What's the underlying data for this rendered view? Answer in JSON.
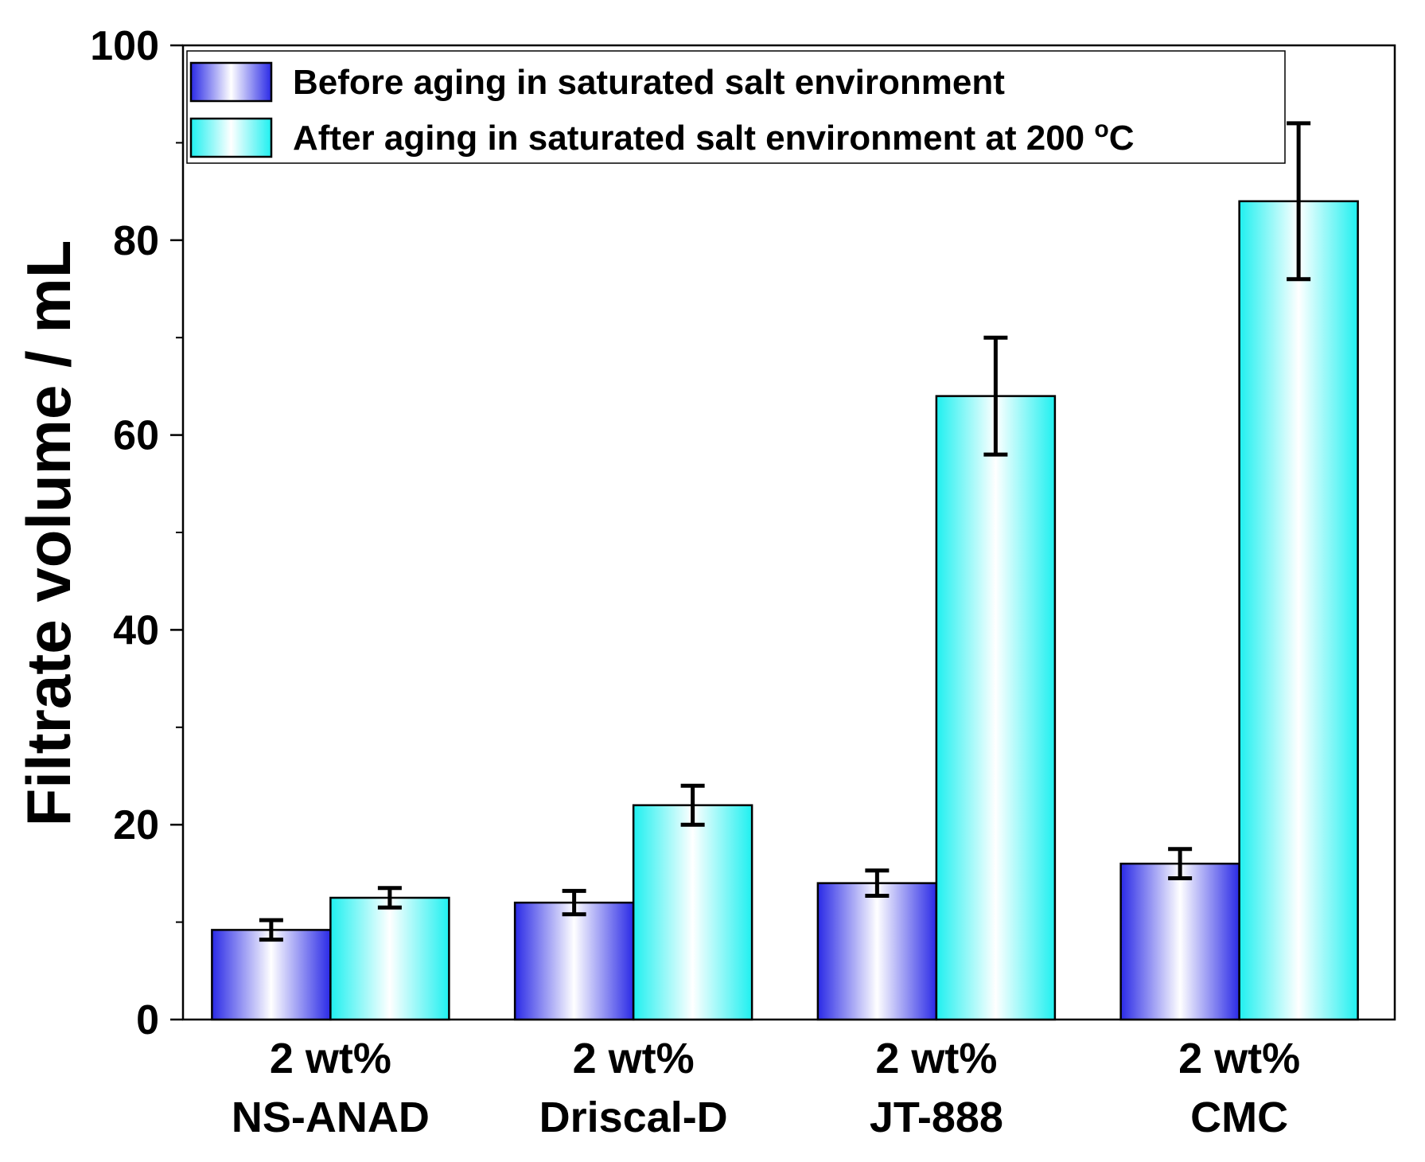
{
  "chart_data": {
    "type": "bar",
    "title": "",
    "xlabel": "",
    "ylabel": "Filtrate volume / mL",
    "ylim": [
      0,
      100
    ],
    "yticks": [
      0,
      20,
      40,
      60,
      80,
      100
    ],
    "yminor_step": 10,
    "categories": [
      {
        "line1": "2 wt%",
        "line2": "NS-ANAD"
      },
      {
        "line1": "2 wt%",
        "line2": "Driscal-D"
      },
      {
        "line1": "2 wt%",
        "line2": "JT-888"
      },
      {
        "line1": "2 wt%",
        "line2": "CMC"
      }
    ],
    "series": [
      {
        "name": "Before aging in saturated salt environment",
        "values": [
          9.2,
          12.0,
          14.0,
          16.0
        ],
        "errors": [
          1.0,
          1.2,
          1.3,
          1.5
        ],
        "color_edge": "#2a2ae6",
        "color_center": "#ffffff"
      },
      {
        "name": "After aging in saturated salt environment at 200 ",
        "name_super": "o",
        "name_suffix": "C",
        "values": [
          12.5,
          22.0,
          64.0,
          84.0
        ],
        "errors": [
          1.0,
          2.0,
          6.0,
          8.0
        ],
        "color_edge": "#1ff0f0",
        "color_center": "#ffffff"
      }
    ],
    "legend_position": "top-left"
  }
}
